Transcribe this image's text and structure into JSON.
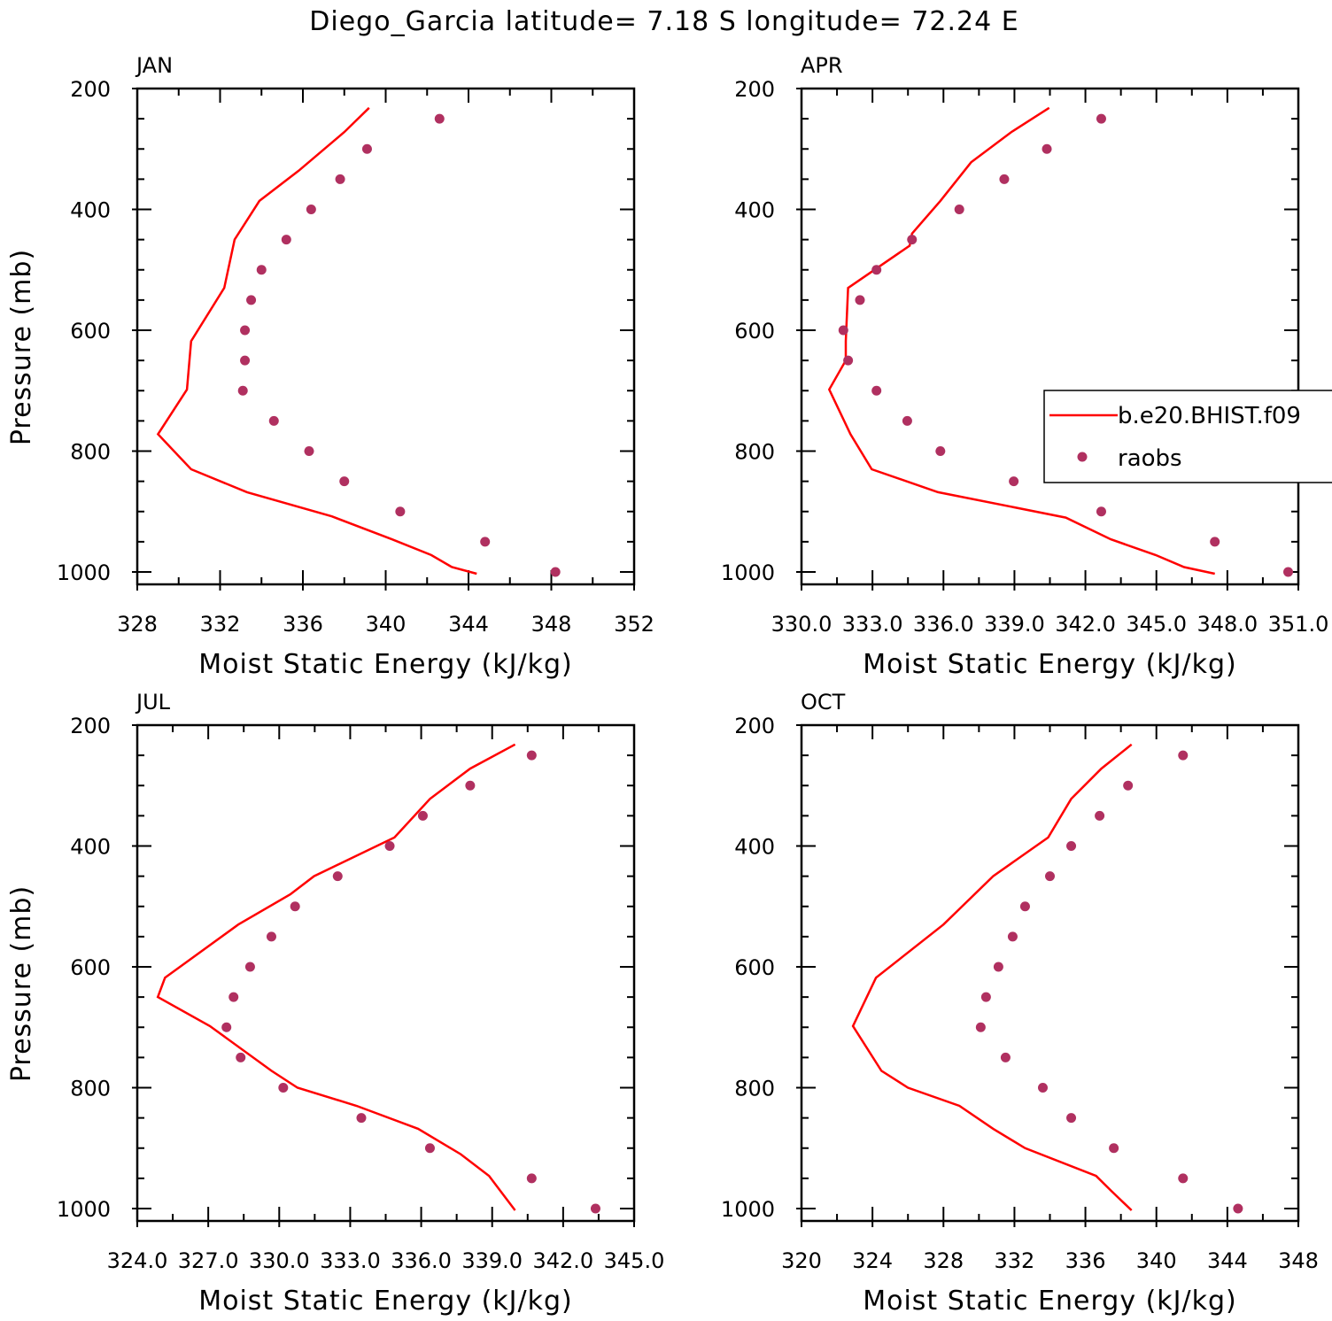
{
  "title": "Diego_Garcia  latitude= 7.18 S longitude= 72.24 E",
  "legend": {
    "model_label": "b.e20.BHIST.f09",
    "obs_label": "raobs",
    "model_color": "#ff0000",
    "obs_color": "#b03060"
  },
  "chart_data": [
    {
      "type": "line",
      "panel": "JAN",
      "xlabel": "Moist Static Energy (kJ/kg)",
      "ylabel": "Pressure (mb)",
      "xlim": [
        328,
        352
      ],
      "ylim": [
        1000,
        200
      ],
      "xticks": [
        328,
        332,
        336,
        340,
        344,
        348,
        352
      ],
      "xtick_labels": [
        "328",
        "332",
        "336",
        "340",
        "344",
        "348",
        "352"
      ],
      "yticks": [
        200,
        400,
        600,
        800,
        1000
      ],
      "ytick_labels": [
        "200",
        "400",
        "600",
        "800",
        "1000"
      ],
      "series": [
        {
          "name": "b.e20.BHIST.f09",
          "kind": "line",
          "color": "#ff0000",
          "x": [
            339.2,
            338.0,
            335.8,
            333.9,
            332.7,
            332.2,
            330.6,
            330.4,
            329.0,
            330.6,
            333.3,
            337.4,
            340.3,
            342.2,
            343.2,
            344.4
          ],
          "y": [
            232,
            272,
            336,
            386,
            450,
            530,
            618,
            698,
            772,
            830,
            868,
            908,
            946,
            972,
            992,
            1003
          ]
        },
        {
          "name": "raobs",
          "kind": "scatter",
          "color": "#b03060",
          "x": [
            342.6,
            339.1,
            337.8,
            336.4,
            335.2,
            334.0,
            333.5,
            333.2,
            333.2,
            333.1,
            334.6,
            336.3,
            338.0,
            340.7,
            344.8,
            348.2
          ],
          "y": [
            250,
            300,
            350,
            400,
            450,
            500,
            550,
            600,
            650,
            700,
            750,
            800,
            850,
            900,
            950,
            1000
          ]
        }
      ]
    },
    {
      "type": "line",
      "panel": "APR",
      "xlabel": "Moist Static Energy (kJ/kg)",
      "ylabel": "",
      "xlim": [
        330.03,
        351.03
      ],
      "ylim": [
        1000,
        200
      ],
      "xticks": [
        330.03,
        333.03,
        336.03,
        339.03,
        342.03,
        345.03,
        348.03,
        351.03
      ],
      "xtick_labels": [
        "330.0",
        "333.0",
        "336.0",
        "339.0",
        "342.0",
        "345.0",
        "348.0",
        "351.0"
      ],
      "yticks": [
        200,
        400,
        600,
        800,
        1000
      ],
      "ytick_labels": [
        "200",
        "400",
        "600",
        "800",
        "1000"
      ],
      "series": [
        {
          "name": "b.e20.BHIST.f09",
          "kind": "line",
          "color": "#ff0000",
          "x": [
            340.5,
            338.9,
            337.2,
            335.9,
            334.7,
            334.6,
            332.0,
            331.9,
            331.9,
            331.2,
            332.1,
            333.0,
            335.8,
            341.2,
            343.1,
            345.0,
            346.2,
            347.5
          ],
          "y": [
            232,
            272,
            322,
            386,
            440,
            460,
            530,
            618,
            650,
            698,
            772,
            830,
            868,
            910,
            946,
            972,
            992,
            1003
          ]
        },
        {
          "name": "raobs",
          "kind": "scatter",
          "color": "#b03060",
          "x": [
            342.7,
            340.4,
            338.6,
            336.7,
            334.7,
            333.2,
            332.5,
            331.8,
            332.0,
            333.2,
            334.5,
            335.9,
            339.0,
            342.7,
            347.5,
            350.6
          ],
          "y": [
            250,
            300,
            350,
            400,
            450,
            500,
            550,
            600,
            650,
            700,
            750,
            800,
            850,
            900,
            950,
            1000
          ]
        }
      ]
    },
    {
      "type": "line",
      "panel": "JUL",
      "xlabel": "Moist Static Energy (kJ/kg)",
      "ylabel": "Pressure (mb)",
      "xlim": [
        324.03,
        345.03
      ],
      "ylim": [
        1000,
        200
      ],
      "xticks": [
        324.03,
        327.03,
        330.03,
        333.03,
        336.03,
        339.03,
        342.03,
        345.03
      ],
      "xtick_labels": [
        "324.0",
        "327.0",
        "330.0",
        "333.0",
        "336.0",
        "339.0",
        "342.0",
        "345.0"
      ],
      "yticks": [
        200,
        400,
        600,
        800,
        1000
      ],
      "ytick_labels": [
        "200",
        "400",
        "600",
        "800",
        "1000"
      ],
      "series": [
        {
          "name": "b.e20.BHIST.f09",
          "kind": "line",
          "color": "#ff0000",
          "x": [
            340.0,
            338.1,
            336.4,
            334.9,
            331.5,
            330.5,
            328.3,
            325.2,
            324.9,
            327.1,
            329.7,
            330.8,
            333.3,
            335.9,
            337.7,
            338.9,
            339.4,
            340.0
          ],
          "y": [
            232,
            272,
            322,
            386,
            450,
            480,
            530,
            618,
            650,
            698,
            772,
            800,
            830,
            868,
            910,
            946,
            972,
            1003
          ]
        },
        {
          "name": "raobs",
          "kind": "scatter",
          "color": "#b03060",
          "x": [
            340.7,
            338.1,
            336.1,
            334.7,
            332.5,
            330.7,
            329.7,
            328.8,
            328.1,
            327.8,
            328.4,
            330.2,
            333.5,
            336.4,
            340.7,
            343.4
          ],
          "y": [
            250,
            300,
            350,
            400,
            450,
            500,
            550,
            600,
            650,
            700,
            750,
            800,
            850,
            900,
            950,
            1000
          ]
        }
      ]
    },
    {
      "type": "line",
      "panel": "OCT",
      "xlabel": "Moist Static Energy (kJ/kg)",
      "ylabel": "",
      "xlim": [
        320,
        348
      ],
      "ylim": [
        1000,
        200
      ],
      "xticks": [
        320,
        324,
        328,
        332,
        336,
        340,
        344,
        348
      ],
      "xtick_labels": [
        "320",
        "324",
        "328",
        "332",
        "336",
        "340",
        "344",
        "348"
      ],
      "yticks": [
        200,
        400,
        600,
        800,
        1000
      ],
      "ytick_labels": [
        "200",
        "400",
        "600",
        "800",
        "1000"
      ],
      "series": [
        {
          "name": "b.e20.BHIST.f09",
          "kind": "line",
          "color": "#ff0000",
          "x": [
            338.6,
            336.9,
            335.2,
            333.9,
            330.8,
            328.0,
            324.2,
            322.9,
            324.5,
            326.0,
            328.9,
            330.8,
            332.6,
            336.6,
            337.5,
            338.6
          ],
          "y": [
            232,
            272,
            322,
            386,
            450,
            530,
            618,
            698,
            772,
            800,
            830,
            868,
            900,
            946,
            972,
            1003
          ]
        },
        {
          "name": "raobs",
          "kind": "scatter",
          "color": "#b03060",
          "x": [
            341.5,
            338.4,
            336.8,
            335.2,
            334.0,
            332.6,
            331.9,
            331.1,
            330.4,
            330.1,
            331.5,
            333.6,
            335.2,
            337.6,
            341.5,
            344.6
          ],
          "y": [
            250,
            300,
            350,
            400,
            450,
            500,
            550,
            600,
            650,
            700,
            750,
            800,
            850,
            900,
            950,
            1000
          ]
        }
      ]
    }
  ]
}
